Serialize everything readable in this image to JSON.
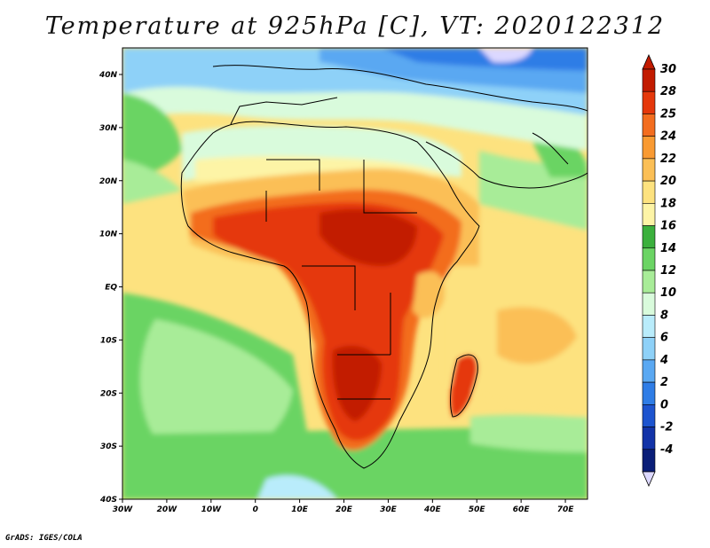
{
  "title": "Temperature at 925hPa [C], VT: 2020122312",
  "credit": "GrADS: IGES/COLA",
  "lon_labels": [
    "30W",
    "20W",
    "10W",
    "0",
    "10E",
    "20E",
    "30E",
    "40E",
    "50E",
    "60E",
    "70E"
  ],
  "lat_labels": [
    "40N",
    "30N",
    "20N",
    "10N",
    "EQ",
    "10S",
    "20S",
    "30S",
    "40S"
  ],
  "colorbar": {
    "labels": [
      "30",
      "28",
      "25",
      "24",
      "22",
      "20",
      "18",
      "16",
      "14",
      "12",
      "10",
      "8",
      "6",
      "4",
      "2",
      "0",
      "-2",
      "-4"
    ],
    "colors": [
      "#c21b00",
      "#e5380b",
      "#f36d1f",
      "#f99a32",
      "#fbbf56",
      "#fde27f",
      "#fdf4a6",
      "#3bb03d",
      "#6bd464",
      "#a8ec98",
      "#d9fbdc",
      "#b9ecfb",
      "#8ed1f8",
      "#5aa8f2",
      "#2f7de6",
      "#1d54cf",
      "#1233a8",
      "#0a1e78"
    ],
    "top_cap_color": "#c21b00",
    "bottom_cap_color": "#dcd8ff"
  },
  "map_colors": {
    "ocean_warm": "#fdf4a6",
    "ocean_mild": "#fde27f",
    "ocean_cool": "#a8ec98",
    "ocean_cold": "#6bd464",
    "sahara": "#d9fbdc",
    "sahel": "#fbbf56",
    "hot_core": "#e5380b",
    "hottest": "#c21b00",
    "orange": "#f36d1f",
    "med": "#8ed1f8",
    "cold_north": "#5aa8f2",
    "deep_cold": "#1d54cf"
  }
}
